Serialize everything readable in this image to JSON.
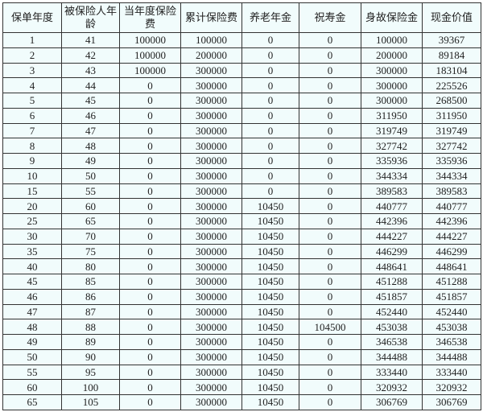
{
  "table": {
    "headers": [
      "保单年度",
      "被保险人年龄",
      "当年度保险费",
      "累计保险费",
      "养老年金",
      "祝寿金",
      "身故保险金",
      "现金价值"
    ],
    "rows": [
      [
        "1",
        "41",
        "100000",
        "100000",
        "0",
        "0",
        "100000",
        "39367"
      ],
      [
        "2",
        "42",
        "100000",
        "200000",
        "0",
        "0",
        "200000",
        "89184"
      ],
      [
        "3",
        "43",
        "100000",
        "300000",
        "0",
        "0",
        "300000",
        "183104"
      ],
      [
        "4",
        "44",
        "0",
        "300000",
        "0",
        "0",
        "300000",
        "225526"
      ],
      [
        "5",
        "45",
        "0",
        "300000",
        "0",
        "0",
        "300000",
        "268500"
      ],
      [
        "6",
        "46",
        "0",
        "300000",
        "0",
        "0",
        "311950",
        "311950"
      ],
      [
        "7",
        "47",
        "0",
        "300000",
        "0",
        "0",
        "319749",
        "319749"
      ],
      [
        "8",
        "48",
        "0",
        "300000",
        "0",
        "0",
        "327742",
        "327742"
      ],
      [
        "9",
        "49",
        "0",
        "300000",
        "0",
        "0",
        "335936",
        "335936"
      ],
      [
        "10",
        "50",
        "0",
        "300000",
        "0",
        "0",
        "344334",
        "344334"
      ],
      [
        "15",
        "55",
        "0",
        "300000",
        "0",
        "0",
        "389583",
        "389583"
      ],
      [
        "20",
        "60",
        "0",
        "300000",
        "10450",
        "0",
        "440777",
        "440777"
      ],
      [
        "25",
        "65",
        "0",
        "300000",
        "10450",
        "0",
        "442396",
        "442396"
      ],
      [
        "30",
        "70",
        "0",
        "300000",
        "10450",
        "0",
        "444227",
        "444227"
      ],
      [
        "35",
        "75",
        "0",
        "300000",
        "10450",
        "0",
        "446299",
        "446299"
      ],
      [
        "40",
        "80",
        "0",
        "300000",
        "10450",
        "0",
        "448641",
        "448641"
      ],
      [
        "45",
        "85",
        "0",
        "300000",
        "10450",
        "0",
        "451288",
        "451288"
      ],
      [
        "46",
        "86",
        "0",
        "300000",
        "10450",
        "0",
        "451857",
        "451857"
      ],
      [
        "47",
        "87",
        "0",
        "300000",
        "10450",
        "0",
        "452440",
        "452440"
      ],
      [
        "48",
        "88",
        "0",
        "300000",
        "10450",
        "104500",
        "453038",
        "453038"
      ],
      [
        "49",
        "89",
        "0",
        "300000",
        "10450",
        "0",
        "346538",
        "346538"
      ],
      [
        "50",
        "90",
        "0",
        "300000",
        "10450",
        "0",
        "344488",
        "344488"
      ],
      [
        "55",
        "95",
        "0",
        "300000",
        "10450",
        "0",
        "333440",
        "333440"
      ],
      [
        "60",
        "100",
        "0",
        "300000",
        "10450",
        "0",
        "320932",
        "320932"
      ],
      [
        "65",
        "105",
        "0",
        "300000",
        "10450",
        "0",
        "306769",
        "306769"
      ]
    ]
  }
}
